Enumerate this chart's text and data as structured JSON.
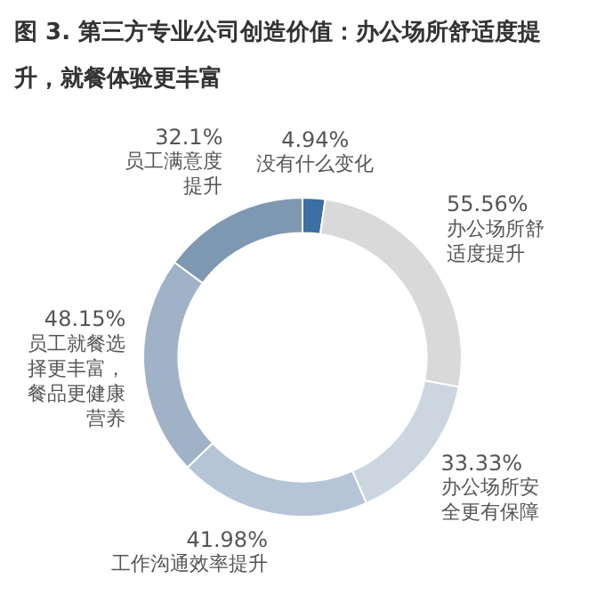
{
  "chart_data": {
    "type": "donut",
    "title": "图 3. 第三方专业公司创造价值：办公场所舒适度提升，就餐体验更丰富",
    "categories": [
      "没有什么变化",
      "办公场所舒适度提升",
      "办公场所安全更有保障",
      "工作沟通效率提升",
      "员工就餐选择更丰富，餐品更健康营养",
      "员工满意度提升"
    ],
    "values": [
      4.94,
      55.56,
      33.33,
      41.98,
      48.15,
      32.1
    ],
    "value_labels": [
      "4.94%",
      "55.56%",
      "33.33%",
      "41.98%",
      "48.15%",
      "32.1%"
    ],
    "colors": [
      "#3d6fa3",
      "#d9d9d9",
      "#cbd6e1",
      "#b5c5d5",
      "#9fb2c7",
      "#7f98b2"
    ],
    "legend": false
  }
}
